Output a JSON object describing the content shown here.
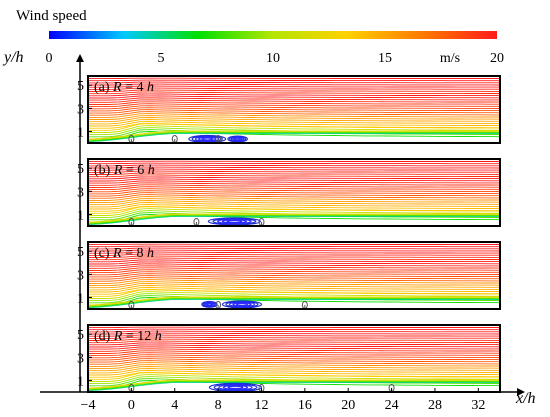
{
  "chart_data": {
    "type": "heatmap",
    "description_kind": "streamline plots colored by wind speed",
    "colorbar": {
      "title": "Wind speed",
      "unit": "m/s",
      "range": [
        0,
        20
      ],
      "ticks": [
        "0",
        "5",
        "10",
        "15",
        "20"
      ],
      "colormap": [
        "#0000ff",
        "#00c8ff",
        "#00e000",
        "#b4e600",
        "#ffd000",
        "#ff7a00",
        "#ff1a1a"
      ]
    },
    "xaxis": {
      "label_x": "x",
      "label_h": "/h",
      "range": [
        -4,
        34
      ],
      "ticks": [
        -4,
        0,
        4,
        8,
        12,
        16,
        20,
        24,
        28,
        32
      ],
      "tick_labels": [
        "−4",
        "0",
        "4",
        "8",
        "12",
        "16",
        "20",
        "24",
        "28",
        "32"
      ]
    },
    "yaxis": {
      "label_y": "y",
      "label_h": "/h",
      "range": [
        0,
        5.8
      ],
      "ticks": [
        1,
        3,
        5
      ],
      "tick_labels": [
        "1",
        "3",
        "5"
      ]
    },
    "panels": [
      {
        "prefix": "(a) ",
        "var": "R",
        "eq": " = 4 ",
        "unit": "h",
        "trees_x": [
          0,
          4,
          8
        ],
        "vortices": [
          {
            "cx": 7.0,
            "cy": 0.35,
            "rx": 1.7,
            "ry": 0.3
          },
          {
            "cx": 9.8,
            "cy": 0.35,
            "rx": 0.9,
            "ry": 0.25
          }
        ]
      },
      {
        "prefix": "(b) ",
        "var": "R",
        "eq": " = 6 ",
        "unit": "h",
        "trees_x": [
          0,
          6,
          12
        ],
        "vortices": [
          {
            "cx": 9.5,
            "cy": 0.4,
            "rx": 2.4,
            "ry": 0.3
          }
        ]
      },
      {
        "prefix": "(c) ",
        "var": "R",
        "eq": " = 8 ",
        "unit": "h",
        "trees_x": [
          0,
          8,
          16
        ],
        "vortices": [
          {
            "cx": 7.2,
            "cy": 0.4,
            "rx": 0.7,
            "ry": 0.25
          },
          {
            "cx": 10.2,
            "cy": 0.4,
            "rx": 1.8,
            "ry": 0.3
          }
        ]
      },
      {
        "prefix": "(d) ",
        "var": "R",
        "eq": " = 12 ",
        "unit": "h",
        "trees_x": [
          0,
          12,
          24
        ],
        "vortices": [
          {
            "cx": 9.6,
            "cy": 0.4,
            "rx": 2.4,
            "ry": 0.35
          }
        ]
      }
    ]
  }
}
